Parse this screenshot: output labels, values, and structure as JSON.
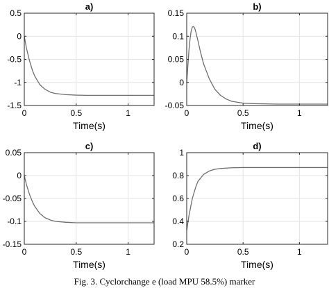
{
  "caption": "Fig. 3. Cyclorchange e (load MPU 58.5%) marker",
  "chart_data": [
    {
      "type": "line",
      "title": "a)",
      "xlabel": "Time(s)",
      "ylabel": "",
      "xlim": [
        0,
        1.25
      ],
      "ylim": [
        -1.5,
        0.5
      ],
      "xticks": [
        0,
        0.5,
        1
      ],
      "xtick_labels": [
        "0",
        "0.5",
        "1"
      ],
      "yticks": [
        0.5,
        0,
        -0.5,
        -1,
        -1.5
      ],
      "ytick_labels": [
        "0.5",
        "0",
        "-0.5",
        "-1",
        "-1.5"
      ],
      "grid": true,
      "line_color": "#6e6e6e",
      "series": [
        {
          "x": [
            0,
            0.02,
            0.05,
            0.08,
            0.1,
            0.15,
            0.2,
            0.25,
            0.3,
            0.4,
            0.5,
            0.6,
            0.8,
            1.0,
            1.25
          ],
          "y": [
            0,
            -0.25,
            -0.53,
            -0.75,
            -0.86,
            -1.05,
            -1.15,
            -1.21,
            -1.24,
            -1.265,
            -1.275,
            -1.28,
            -1.28,
            -1.28,
            -1.28
          ]
        }
      ]
    },
    {
      "type": "line",
      "title": "b)",
      "xlabel": "Time(s)",
      "ylabel": "",
      "xlim": [
        0,
        1.25
      ],
      "ylim": [
        -0.05,
        0.15
      ],
      "xticks": [
        0,
        0.5,
        1
      ],
      "xtick_labels": [
        "0",
        "0.5",
        "1"
      ],
      "yticks": [
        0.15,
        0.1,
        0.05,
        0,
        -0.05
      ],
      "ytick_labels": [
        "0.15",
        "0.1",
        "0.05",
        "0",
        "-0.05"
      ],
      "grid": true,
      "line_color": "#6e6e6e",
      "series": [
        {
          "x": [
            0,
            0.01,
            0.02,
            0.03,
            0.04,
            0.05,
            0.06,
            0.07,
            0.08,
            0.1,
            0.12,
            0.15,
            0.2,
            0.25,
            0.3,
            0.35,
            0.4,
            0.5,
            0.6,
            0.8,
            1.0,
            1.25
          ],
          "y": [
            0,
            0.035,
            0.07,
            0.095,
            0.112,
            0.12,
            0.121,
            0.118,
            0.11,
            0.09,
            0.068,
            0.04,
            0.008,
            -0.015,
            -0.028,
            -0.036,
            -0.041,
            -0.045,
            -0.046,
            -0.047,
            -0.047,
            -0.047
          ]
        }
      ]
    },
    {
      "type": "line",
      "title": "c)",
      "xlabel": "Time(s)",
      "ylabel": "",
      "xlim": [
        0,
        1.25
      ],
      "ylim": [
        -0.15,
        0.05
      ],
      "xticks": [
        0,
        0.5,
        1
      ],
      "xtick_labels": [
        "0",
        "0.5",
        "1"
      ],
      "yticks": [
        0.05,
        0,
        -0.05,
        -0.1,
        -0.15
      ],
      "ytick_labels": [
        "0.05",
        "0",
        "-0.05",
        "-0.1",
        "-0.15"
      ],
      "grid": true,
      "line_color": "#6e6e6e",
      "series": [
        {
          "x": [
            0,
            0.02,
            0.05,
            0.08,
            0.1,
            0.15,
            0.2,
            0.25,
            0.3,
            0.4,
            0.5,
            0.6,
            0.8,
            1.0,
            1.25
          ],
          "y": [
            0,
            -0.019,
            -0.041,
            -0.058,
            -0.067,
            -0.083,
            -0.092,
            -0.097,
            -0.1,
            -0.102,
            -0.103,
            -0.103,
            -0.103,
            -0.103,
            -0.103
          ]
        }
      ]
    },
    {
      "type": "line",
      "title": "d)",
      "xlabel": "Time(s)",
      "ylabel": "",
      "xlim": [
        0,
        1.25
      ],
      "ylim": [
        0.2,
        1.0
      ],
      "xticks": [
        0,
        0.5,
        1
      ],
      "xtick_labels": [
        "0",
        "0.5",
        "1"
      ],
      "yticks": [
        1,
        0.8,
        0.6,
        0.4,
        0.2
      ],
      "ytick_labels": [
        "1",
        "0.8",
        "0.6",
        "0.4",
        "0.2"
      ],
      "grid": true,
      "line_color": "#6e6e6e",
      "series": [
        {
          "x": [
            0,
            0.02,
            0.05,
            0.08,
            0.1,
            0.15,
            0.2,
            0.25,
            0.3,
            0.4,
            0.5,
            0.6,
            0.8,
            1.0,
            1.25
          ],
          "y": [
            0.32,
            0.45,
            0.6,
            0.7,
            0.75,
            0.81,
            0.84,
            0.855,
            0.862,
            0.868,
            0.87,
            0.87,
            0.87,
            0.87,
            0.87
          ]
        }
      ]
    }
  ]
}
